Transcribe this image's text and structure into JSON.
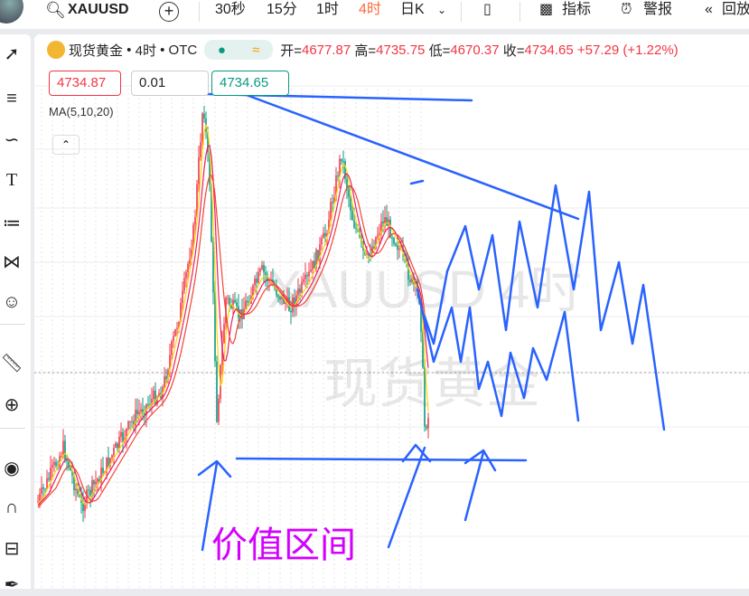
{
  "topbar": {
    "symbol": "XAUUSD",
    "intervals": [
      "30秒",
      "15分",
      "1时",
      "4时",
      "日K"
    ],
    "active_interval": "4时",
    "indicators": "指标",
    "alerts": "警报",
    "replay": "回放"
  },
  "legend": {
    "name": "现货黄金",
    "interval": "4时",
    "exchange": "OTC",
    "open_label": "开=",
    "open": "4677.87",
    "high_label": "高=",
    "high": "4735.75",
    "low_label": "低=",
    "low": "4670.37",
    "close_label": "收=",
    "close": "4734.65",
    "change": "+57.29",
    "change_pct": "(+1.22%)"
  },
  "order": {
    "sell_price": "4734.87",
    "quantity": "0.01",
    "buy_price": "4734.65"
  },
  "indicator": "MA(5,10,20)",
  "watermark": {
    "line1": "XAUUSD 4时",
    "line2": "现货黄金"
  },
  "annotation": "价值区间",
  "colors": {
    "up": "#f23645",
    "down": "#089981",
    "drawing": "#2962ff",
    "annotation": "#d400ff",
    "active": "#ff6a3d"
  }
}
